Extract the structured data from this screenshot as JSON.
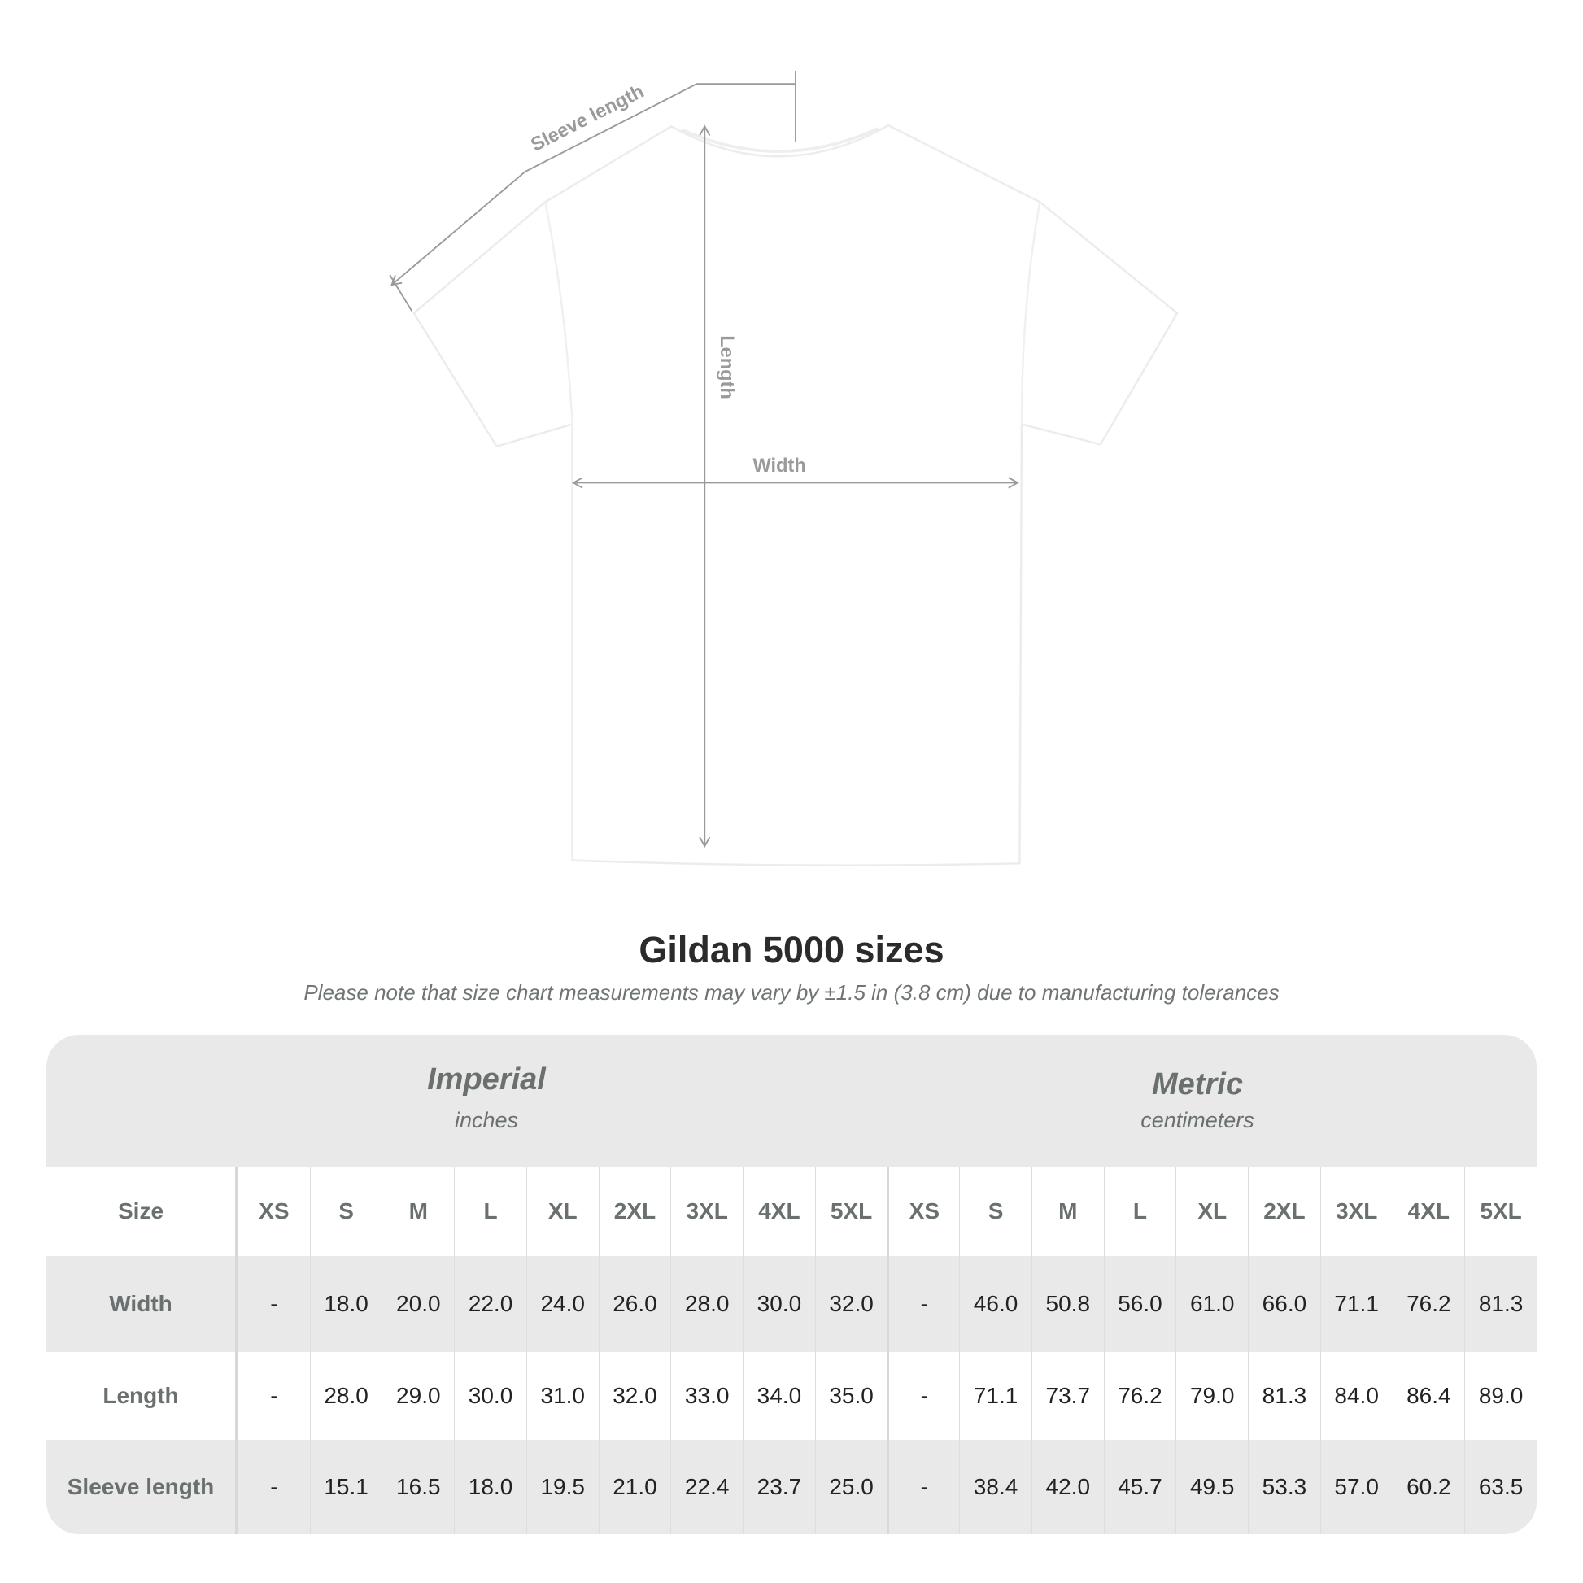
{
  "diagram": {
    "sleeve_label": "Sleeve length",
    "length_label": "Length",
    "width_label": "Width",
    "shirt_color": "#ffffff",
    "line_color": "#9a9a9a"
  },
  "title": "Gildan 5000 sizes",
  "note": "Please note that size chart measurements may vary by ±1.5 in (3.8 cm) due to manufacturing tolerances",
  "table": {
    "imperial": {
      "label": "Imperial",
      "unit": "inches"
    },
    "metric": {
      "label": "Metric",
      "unit": "centimeters"
    },
    "size_header": "Size",
    "sizes": [
      "XS",
      "S",
      "M",
      "L",
      "XL",
      "2XL",
      "3XL",
      "4XL",
      "5XL"
    ],
    "rows": [
      {
        "label": "Width",
        "imperial": [
          "-",
          "18.0",
          "20.0",
          "22.0",
          "24.0",
          "26.0",
          "28.0",
          "30.0",
          "32.0"
        ],
        "metric": [
          "-",
          "46.0",
          "50.8",
          "56.0",
          "61.0",
          "66.0",
          "71.1",
          "76.2",
          "81.3"
        ]
      },
      {
        "label": "Length",
        "imperial": [
          "-",
          "28.0",
          "29.0",
          "30.0",
          "31.0",
          "32.0",
          "33.0",
          "34.0",
          "35.0"
        ],
        "metric": [
          "-",
          "71.1",
          "73.7",
          "76.2",
          "79.0",
          "81.3",
          "84.0",
          "86.4",
          "89.0"
        ]
      },
      {
        "label": "Sleeve length",
        "imperial": [
          "-",
          "15.1",
          "16.5",
          "18.0",
          "19.5",
          "21.0",
          "22.4",
          "23.7",
          "25.0"
        ],
        "metric": [
          "-",
          "38.4",
          "42.0",
          "45.7",
          "49.5",
          "53.3",
          "57.0",
          "60.2",
          "63.5"
        ]
      }
    ],
    "band_color": "#e9e9e9"
  }
}
